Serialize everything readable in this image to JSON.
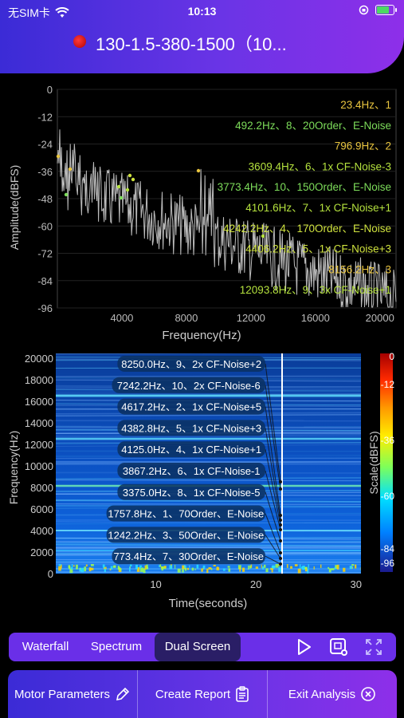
{
  "status_bar": {
    "carrier": "无SIM卡",
    "time": "10:13"
  },
  "header": {
    "title": "130-1.5-380-1500（10..."
  },
  "spectrum": {
    "ylabel": "Amplitude(dBFS)",
    "xlabel": "Frequency(Hz)",
    "y_ticks": [
      "0",
      "-12",
      "-24",
      "-36",
      "-48",
      "-60",
      "-72",
      "-84",
      "-96"
    ],
    "x_ticks": [
      "4000",
      "8000",
      "12000",
      "16000",
      "20000"
    ],
    "annotations": [
      {
        "text": "23.4Hz、1",
        "color": "#e9c53f"
      },
      {
        "text": "492.2Hz、8、20Order、E-Noise",
        "color": "#7ddc5a"
      },
      {
        "text": "796.9Hz、2",
        "color": "#e9c53f"
      },
      {
        "text": "3609.4Hz、6、1x CF-Noise-3",
        "color": "#b5e23e"
      },
      {
        "text": "3773.4Hz、10、150Order、E-Noise",
        "color": "#7ddc5a"
      },
      {
        "text": "4101.6Hz、7、1x CF-Noise+1",
        "color": "#b5e23e"
      },
      {
        "text": "4242.2Hz、4、170Order、E-Noise",
        "color": "#cfe23e"
      },
      {
        "text": "4406.2Hz、5、1x CF-Noise+3",
        "color": "#cfe23e"
      },
      {
        "text": "8156.2Hz、3",
        "color": "#e9c53f"
      },
      {
        "text": "12093.8Hz、9、3x CF-Noise+1",
        "color": "#b5e23e"
      }
    ]
  },
  "waterfall": {
    "ylabel": "Frequency(Hz)",
    "xlabel": "Time(seconds)",
    "scale_label": "Scale(dBFS)",
    "y_ticks": [
      "20000",
      "18000",
      "16000",
      "14000",
      "12000",
      "10000",
      "8000",
      "6000",
      "4000",
      "2000",
      "0"
    ],
    "x_ticks": [
      "10",
      "20",
      "30"
    ],
    "scale_ticks": [
      "0",
      "-12",
      "-36",
      "-60",
      "-84",
      "-96"
    ],
    "labels": [
      "8250.0Hz、9、2x CF-Noise+2",
      "7242.2Hz、10、2x CF-Noise-6",
      "4617.2Hz、2、1x CF-Noise+5",
      "4382.8Hz、5、1x CF-Noise+3",
      "4125.0Hz、4、1x CF-Noise+1",
      "3867.2Hz、6、1x CF-Noise-1",
      "3375.0Hz、8、1x CF-Noise-5",
      "1757.8Hz、1、70Order、E-Noise",
      "1242.2Hz、3、50Order、E-Noise",
      "773.4Hz、7、30Order、E-Noise"
    ]
  },
  "modes": {
    "waterfall": "Waterfall",
    "spectrum": "Spectrum",
    "dual": "Dual Screen",
    "active": "Dual Screen"
  },
  "actions": {
    "motor": "Motor Parameters",
    "report": "Create Report",
    "exit": "Exit Analysis"
  },
  "colors": {
    "accent": "#6a34e6",
    "header_start": "#3b2bd6",
    "header_end": "#8e2fe9"
  }
}
